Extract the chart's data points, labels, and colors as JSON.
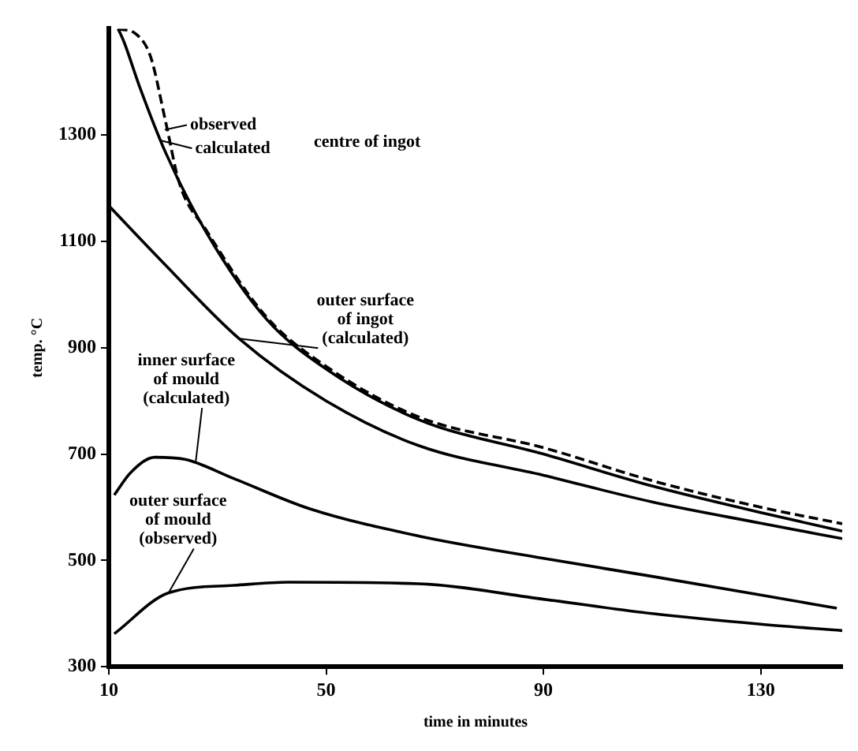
{
  "chart_data": {
    "type": "line",
    "xlabel": "time in minutes",
    "ylabel": "temp. °C",
    "xlim": [
      10,
      145
    ],
    "xticks": [
      10,
      50,
      90,
      130
    ],
    "ylim": [
      300,
      1500
    ],
    "yticks": [
      300,
      500,
      700,
      900,
      1100,
      1300
    ],
    "grid": false,
    "legend": false,
    "marker": "none",
    "series": [
      {
        "color": "#000000",
        "line_style": "dashed",
        "x": [
          11.7,
          15,
          17.7,
          20.5,
          23,
          28,
          39,
          50,
          67,
          90,
          110,
          130,
          145
        ],
        "values": [
          1500,
          1490,
          1447,
          1323,
          1209,
          1120,
          958,
          865,
          770,
          712,
          650,
          600,
          569
        ]
      },
      {
        "color": "#000000",
        "line_style": "solid",
        "x": [
          11.7,
          12.8,
          15.7,
          20.5,
          28,
          39,
          50,
          67,
          90,
          110,
          130,
          145
        ],
        "values": [
          1500,
          1475,
          1390,
          1266,
          1116,
          954,
          860,
          765,
          700,
          640,
          590,
          555
        ]
      },
      {
        "color": "#000000",
        "line_style": "solid",
        "x": [
          10,
          20,
          34,
          50,
          67,
          90,
          110,
          130,
          145
        ],
        "values": [
          1167,
          1060,
          917,
          800,
          716,
          660,
          610,
          570,
          541
        ]
      },
      {
        "color": "#000000",
        "line_style": "solid",
        "x": [
          11,
          14,
          18.5,
          24,
          33,
          47,
          67,
          90,
          110,
          130,
          144
        ],
        "values": [
          623,
          665,
          694,
          690,
          654,
          597,
          546,
          504,
          470,
          435,
          410
        ]
      },
      {
        "color": "#000000",
        "line_style": "solid",
        "x": [
          11,
          21,
          33,
          43,
          67,
          90,
          110,
          130,
          145
        ],
        "values": [
          362,
          439,
          453,
          459,
          456,
          427,
          400,
          380,
          368
        ]
      }
    ],
    "annotations": [
      {
        "text": "observed",
        "x": 20.3,
        "y": 1310
      },
      {
        "text": "calculated",
        "x": 19.5,
        "y": 1290
      },
      "centre of ingot",
      {
        "text": "outer surface of ingot (calculated)",
        "x": 34,
        "y": 917
      },
      {
        "text": "inner surface of mould (calculated)",
        "x": 26,
        "y": 686
      },
      {
        "text": "outer surface of mould (observed)",
        "x": 21,
        "y": 439
      }
    ]
  }
}
